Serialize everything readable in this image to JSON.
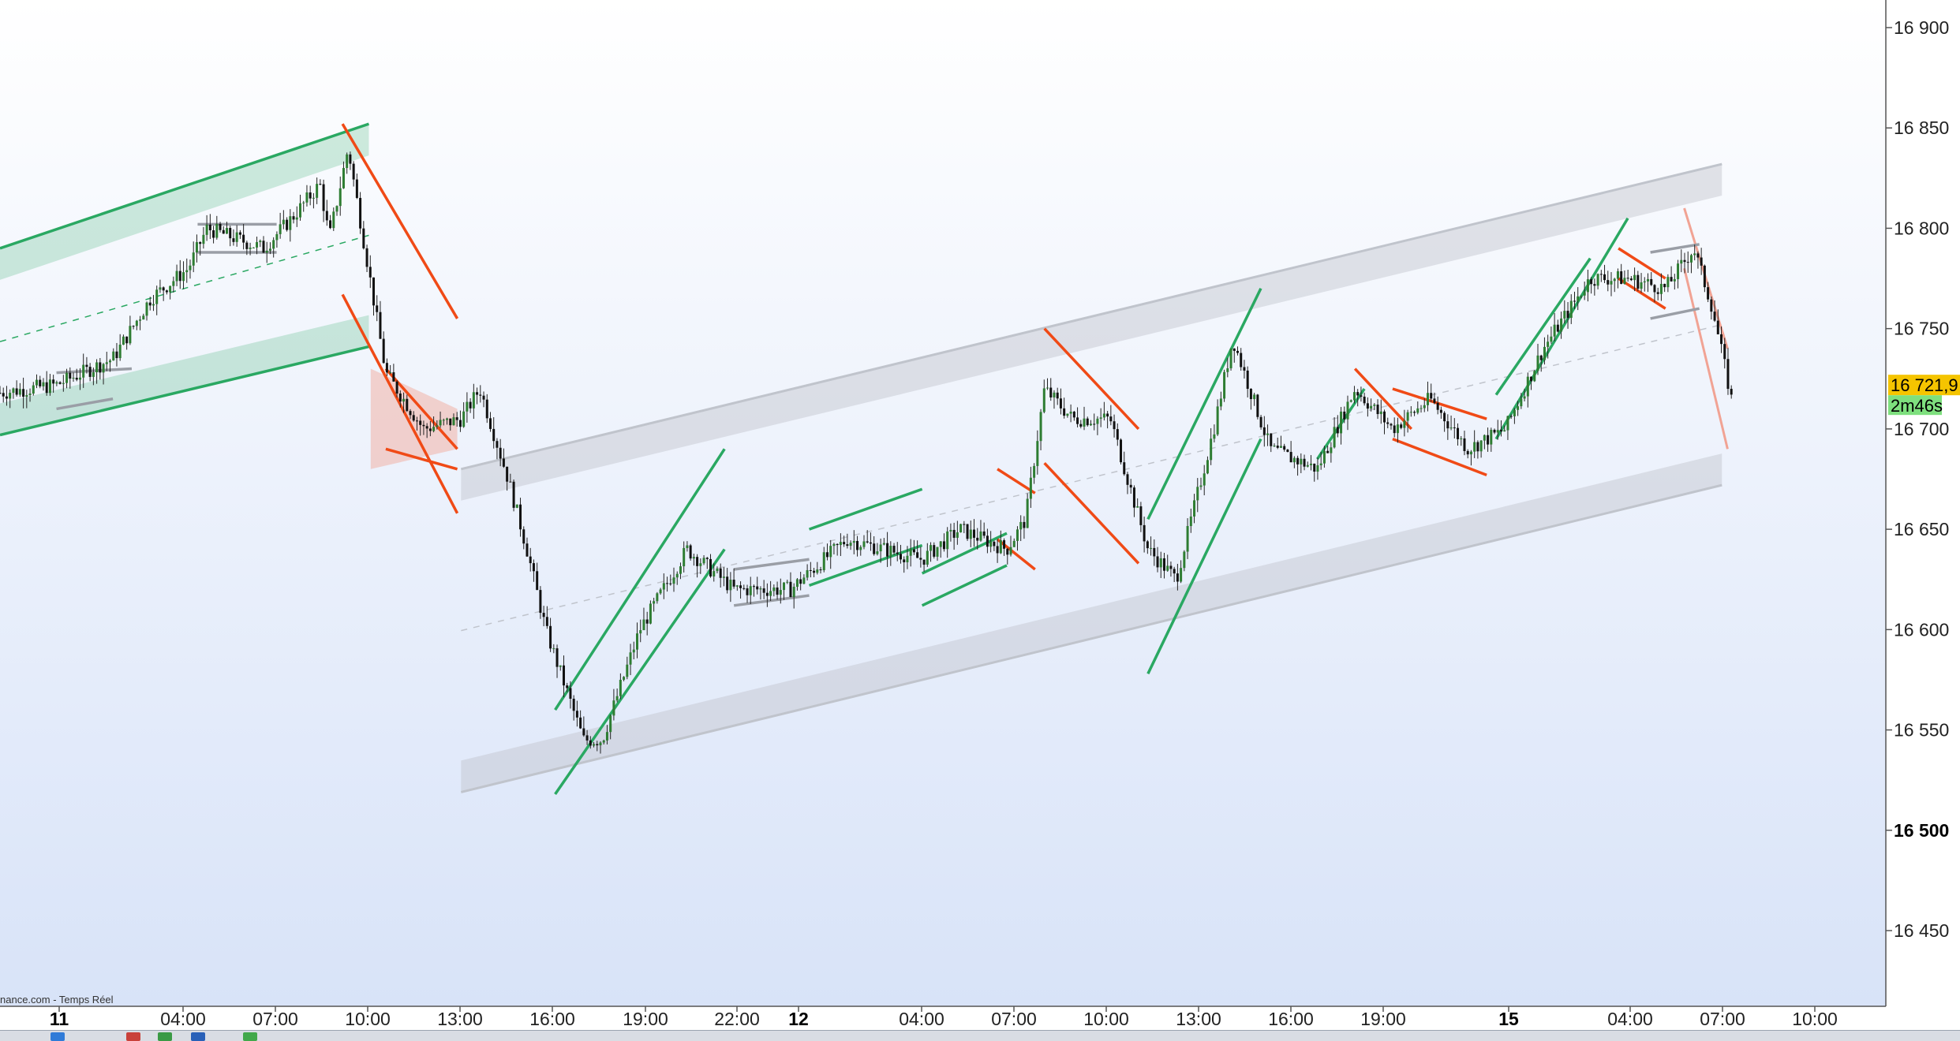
{
  "chart_data": {
    "type": "candlestick",
    "title": "",
    "source_label": "nance.com - Temps Réel",
    "y_axis": {
      "range": [
        16410,
        16910
      ],
      "ticks": [
        {
          "label": "16 900",
          "value": 16900,
          "bold": false
        },
        {
          "label": "16 850",
          "value": 16850,
          "bold": false
        },
        {
          "label": "16 800",
          "value": 16800,
          "bold": false
        },
        {
          "label": "16 750",
          "value": 16750,
          "bold": false
        },
        {
          "label": "16 700",
          "value": 16700,
          "bold": false
        },
        {
          "label": "16 650",
          "value": 16650,
          "bold": false
        },
        {
          "label": "16 600",
          "value": 16600,
          "bold": false
        },
        {
          "label": "16 550",
          "value": 16550,
          "bold": false
        },
        {
          "label": "16 500",
          "value": 16500,
          "bold": true
        },
        {
          "label": "16 450",
          "value": 16450,
          "bold": false
        }
      ]
    },
    "x_axis": {
      "ticks": [
        {
          "label": "11",
          "bold": true
        },
        {
          "label": "04:00",
          "bold": false
        },
        {
          "label": "07:00",
          "bold": false
        },
        {
          "label": "10:00",
          "bold": false
        },
        {
          "label": "13:00",
          "bold": false
        },
        {
          "label": "16:00",
          "bold": false
        },
        {
          "label": "19:00",
          "bold": false
        },
        {
          "label": "22:00",
          "bold": false
        },
        {
          "label": "12",
          "bold": true
        },
        {
          "label": "04:00",
          "bold": false
        },
        {
          "label": "07:00",
          "bold": false
        },
        {
          "label": "10:00",
          "bold": false
        },
        {
          "label": "13:00",
          "bold": false
        },
        {
          "label": "16:00",
          "bold": false
        },
        {
          "label": "19:00",
          "bold": false
        },
        {
          "label": "15",
          "bold": true
        },
        {
          "label": "04:00",
          "bold": false
        },
        {
          "label": "07:00",
          "bold": false
        },
        {
          "label": "10:00",
          "bold": false
        }
      ]
    },
    "last_price": {
      "label": "16 721,9",
      "value": 16721.9,
      "color": "#f5c400"
    },
    "timer": {
      "label": "2m46s",
      "color": "#7ee07e"
    },
    "price_path": [
      [
        0,
        16718
      ],
      [
        0.03,
        16722
      ],
      [
        0.06,
        16735
      ],
      [
        0.08,
        16765
      ],
      [
        0.1,
        16780
      ],
      [
        0.11,
        16800
      ],
      [
        0.14,
        16790
      ],
      [
        0.155,
        16805
      ],
      [
        0.17,
        16822
      ],
      [
        0.175,
        16795
      ],
      [
        0.185,
        16840
      ],
      [
        0.205,
        16728
      ],
      [
        0.225,
        16700
      ],
      [
        0.245,
        16705
      ],
      [
        0.255,
        16720
      ],
      [
        0.27,
        16675
      ],
      [
        0.28,
        16640
      ],
      [
        0.29,
        16600
      ],
      [
        0.31,
        16545
      ],
      [
        0.32,
        16545
      ],
      [
        0.34,
        16600
      ],
      [
        0.365,
        16640
      ],
      [
        0.39,
        16620
      ],
      [
        0.42,
        16620
      ],
      [
        0.45,
        16645
      ],
      [
        0.49,
        16635
      ],
      [
        0.51,
        16650
      ],
      [
        0.535,
        16640
      ],
      [
        0.545,
        16655
      ],
      [
        0.555,
        16720
      ],
      [
        0.57,
        16705
      ],
      [
        0.59,
        16705
      ],
      [
        0.61,
        16640
      ],
      [
        0.625,
        16625
      ],
      [
        0.645,
        16700
      ],
      [
        0.655,
        16745
      ],
      [
        0.675,
        16690
      ],
      [
        0.7,
        16680
      ],
      [
        0.72,
        16720
      ],
      [
        0.74,
        16700
      ],
      [
        0.76,
        16715
      ],
      [
        0.78,
        16690
      ],
      [
        0.8,
        16700
      ],
      [
        0.82,
        16740
      ],
      [
        0.845,
        16775
      ],
      [
        0.865,
        16775
      ],
      [
        0.885,
        16770
      ],
      [
        0.9,
        16790
      ],
      [
        0.91,
        16760
      ],
      [
        0.92,
        16715
      ]
    ],
    "patterns": {
      "channels": [
        {
          "name": "rising-green-channel",
          "color": "#2aa862",
          "upper": [
            [
              0,
              16790
            ],
            [
              0.196,
              16852
            ]
          ],
          "lower": [
            [
              0,
              16697
            ],
            [
              0.196,
              16741
            ]
          ]
        },
        {
          "name": "rising-grey-channel",
          "color": "#c0c4cc",
          "upper": [
            [
              0.245,
              16680
            ],
            [
              0.915,
              16832
            ]
          ],
          "lower": [
            [
              0.245,
              16519
            ],
            [
              0.915,
              16672
            ]
          ]
        },
        {
          "name": "falling-red-zone",
          "color": "#f1a394",
          "upper": [
            [
              0.197,
              16730
            ],
            [
              0.243,
              16710
            ]
          ],
          "lower": [
            [
              0.197,
              16680
            ],
            [
              0.243,
              16690
            ]
          ]
        }
      ]
    }
  },
  "taskbar": {
    "icons": [
      "app-icon-1",
      "app-icon-2",
      "app-icon-3",
      "app-icon-4",
      "app-icon-5"
    ]
  }
}
